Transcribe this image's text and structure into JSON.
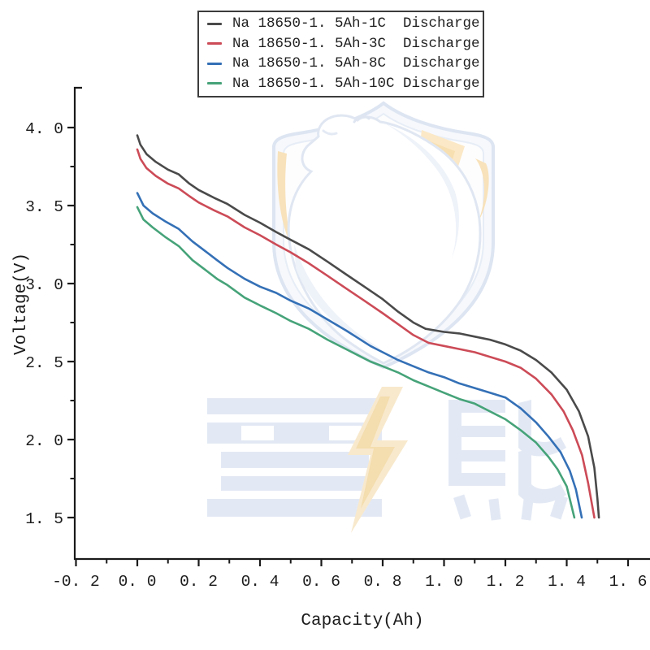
{
  "page": {
    "background": "#ffffff"
  },
  "legend": {
    "items": [
      {
        "label": "Na 18650-1. 5Ah-1C  Discharge",
        "color": "#4a4a4a"
      },
      {
        "label": "Na 18650-1. 5Ah-3C  Discharge",
        "color": "#cc4b57"
      },
      {
        "label": "Na 18650-1. 5Ah-8C  Discharge",
        "color": "#3470b6"
      },
      {
        "label": "Na 18650-1. 5Ah-10C Discharge",
        "color": "#46a379"
      }
    ]
  },
  "watermark": {
    "text": "雪熊",
    "shield_color": "#dde5f2",
    "accent_color": "#f8e2bb",
    "text_color": "#e3e9f4"
  },
  "axes": {
    "x": {
      "label": "Capacity(Ah)",
      "ticks": [
        {
          "v": -0.2,
          "label": "-0. 2"
        },
        {
          "v": 0.0,
          "label": "0. 0"
        },
        {
          "v": 0.2,
          "label": "0. 2"
        },
        {
          "v": 0.4,
          "label": "0. 4"
        },
        {
          "v": 0.6,
          "label": "0. 6"
        },
        {
          "v": 0.8,
          "label": "0. 8"
        },
        {
          "v": 1.0,
          "label": "1. 0"
        },
        {
          "v": 1.2,
          "label": "1. 2"
        },
        {
          "v": 1.4,
          "label": "1. 4"
        },
        {
          "v": 1.6,
          "label": "1. 6"
        }
      ],
      "minor": [
        -0.1,
        0.1,
        0.3,
        0.5,
        0.7,
        0.9,
        1.1,
        1.3,
        1.5
      ]
    },
    "y": {
      "label": "Voltage(V)",
      "ticks": [
        {
          "v": 4.0,
          "label": "4. 0"
        },
        {
          "v": 3.5,
          "label": "3. 5"
        },
        {
          "v": 3.0,
          "label": "3. 0"
        },
        {
          "v": 2.5,
          "label": "2. 5"
        },
        {
          "v": 2.0,
          "label": "2. 0"
        },
        {
          "v": 1.5,
          "label": "1. 5"
        }
      ],
      "minor": [
        3.75,
        3.25,
        2.75,
        2.25,
        1.75
      ]
    }
  },
  "chart_data": {
    "type": "line",
    "title": "",
    "xlabel": "Capacity(Ah)",
    "ylabel": "Voltage(V)",
    "xlim": [
      -0.2,
      1.67
    ],
    "ylim": [
      1.25,
      4.25
    ],
    "grid": false,
    "legend_position": "top-center",
    "series": [
      {
        "name": "Na 18650-1. 5Ah-1C  Discharge",
        "rate": "1C",
        "color": "#4a4a4a",
        "points": [
          [
            0.0,
            3.95
          ],
          [
            0.01,
            3.89
          ],
          [
            0.03,
            3.83
          ],
          [
            0.06,
            3.78
          ],
          [
            0.1,
            3.73
          ],
          [
            0.135,
            3.7
          ],
          [
            0.17,
            3.64
          ],
          [
            0.2,
            3.6
          ],
          [
            0.25,
            3.55
          ],
          [
            0.294,
            3.51
          ],
          [
            0.35,
            3.44
          ],
          [
            0.4,
            3.39
          ],
          [
            0.453,
            3.33
          ],
          [
            0.5,
            3.28
          ],
          [
            0.559,
            3.22
          ],
          [
            0.62,
            3.14
          ],
          [
            0.68,
            3.06
          ],
          [
            0.74,
            2.98
          ],
          [
            0.8,
            2.9
          ],
          [
            0.85,
            2.82
          ],
          [
            0.9,
            2.75
          ],
          [
            0.94,
            2.71
          ],
          [
            1.0,
            2.69
          ],
          [
            1.05,
            2.68
          ],
          [
            1.1,
            2.66
          ],
          [
            1.15,
            2.64
          ],
          [
            1.2,
            2.61
          ],
          [
            1.25,
            2.57
          ],
          [
            1.3,
            2.51
          ],
          [
            1.35,
            2.43
          ],
          [
            1.4,
            2.32
          ],
          [
            1.44,
            2.18
          ],
          [
            1.47,
            2.02
          ],
          [
            1.49,
            1.82
          ],
          [
            1.5,
            1.62
          ],
          [
            1.505,
            1.5
          ]
        ]
      },
      {
        "name": "Na 18650-1. 5Ah-3C  Discharge",
        "rate": "3C",
        "color": "#cc4b57",
        "points": [
          [
            0.0,
            3.86
          ],
          [
            0.01,
            3.8
          ],
          [
            0.03,
            3.74
          ],
          [
            0.06,
            3.69
          ],
          [
            0.1,
            3.64
          ],
          [
            0.135,
            3.61
          ],
          [
            0.17,
            3.56
          ],
          [
            0.2,
            3.52
          ],
          [
            0.25,
            3.47
          ],
          [
            0.294,
            3.43
          ],
          [
            0.35,
            3.36
          ],
          [
            0.4,
            3.31
          ],
          [
            0.453,
            3.25
          ],
          [
            0.5,
            3.2
          ],
          [
            0.559,
            3.13
          ],
          [
            0.62,
            3.05
          ],
          [
            0.68,
            2.97
          ],
          [
            0.74,
            2.89
          ],
          [
            0.8,
            2.81
          ],
          [
            0.85,
            2.74
          ],
          [
            0.9,
            2.67
          ],
          [
            0.95,
            2.62
          ],
          [
            1.0,
            2.6
          ],
          [
            1.05,
            2.58
          ],
          [
            1.1,
            2.56
          ],
          [
            1.15,
            2.53
          ],
          [
            1.2,
            2.5
          ],
          [
            1.25,
            2.46
          ],
          [
            1.3,
            2.39
          ],
          [
            1.35,
            2.29
          ],
          [
            1.39,
            2.18
          ],
          [
            1.42,
            2.06
          ],
          [
            1.45,
            1.9
          ],
          [
            1.47,
            1.72
          ],
          [
            1.49,
            1.5
          ]
        ]
      },
      {
        "name": "Na 18650-1. 5Ah-8C  Discharge",
        "rate": "8C",
        "color": "#3470b6",
        "points": [
          [
            0.0,
            3.58
          ],
          [
            0.02,
            3.5
          ],
          [
            0.05,
            3.45
          ],
          [
            0.09,
            3.4
          ],
          [
            0.135,
            3.35
          ],
          [
            0.18,
            3.27
          ],
          [
            0.22,
            3.21
          ],
          [
            0.26,
            3.15
          ],
          [
            0.294,
            3.1
          ],
          [
            0.35,
            3.03
          ],
          [
            0.4,
            2.98
          ],
          [
            0.453,
            2.94
          ],
          [
            0.5,
            2.89
          ],
          [
            0.559,
            2.84
          ],
          [
            0.62,
            2.77
          ],
          [
            0.68,
            2.7
          ],
          [
            0.72,
            2.65
          ],
          [
            0.76,
            2.6
          ],
          [
            0.8,
            2.56
          ],
          [
            0.85,
            2.51
          ],
          [
            0.9,
            2.47
          ],
          [
            0.95,
            2.43
          ],
          [
            1.0,
            2.4
          ],
          [
            1.05,
            2.36
          ],
          [
            1.1,
            2.33
          ],
          [
            1.15,
            2.3
          ],
          [
            1.2,
            2.27
          ],
          [
            1.25,
            2.2
          ],
          [
            1.3,
            2.11
          ],
          [
            1.34,
            2.02
          ],
          [
            1.38,
            1.92
          ],
          [
            1.41,
            1.8
          ],
          [
            1.43,
            1.68
          ],
          [
            1.449,
            1.5
          ]
        ]
      },
      {
        "name": "Na 18650-1. 5Ah-10C Discharge",
        "rate": "10C",
        "color": "#46a379",
        "points": [
          [
            0.0,
            3.49
          ],
          [
            0.02,
            3.41
          ],
          [
            0.05,
            3.36
          ],
          [
            0.09,
            3.3
          ],
          [
            0.135,
            3.24
          ],
          [
            0.18,
            3.15
          ],
          [
            0.22,
            3.09
          ],
          [
            0.26,
            3.03
          ],
          [
            0.294,
            2.99
          ],
          [
            0.35,
            2.91
          ],
          [
            0.4,
            2.86
          ],
          [
            0.453,
            2.81
          ],
          [
            0.5,
            2.76
          ],
          [
            0.559,
            2.71
          ],
          [
            0.62,
            2.64
          ],
          [
            0.68,
            2.58
          ],
          [
            0.72,
            2.54
          ],
          [
            0.76,
            2.5
          ],
          [
            0.8,
            2.47
          ],
          [
            0.85,
            2.43
          ],
          [
            0.9,
            2.38
          ],
          [
            0.95,
            2.34
          ],
          [
            1.0,
            2.3
          ],
          [
            1.05,
            2.26
          ],
          [
            1.1,
            2.23
          ],
          [
            1.15,
            2.18
          ],
          [
            1.2,
            2.13
          ],
          [
            1.25,
            2.06
          ],
          [
            1.3,
            1.98
          ],
          [
            1.34,
            1.89
          ],
          [
            1.37,
            1.81
          ],
          [
            1.4,
            1.7
          ],
          [
            1.425,
            1.5
          ]
        ]
      }
    ]
  }
}
